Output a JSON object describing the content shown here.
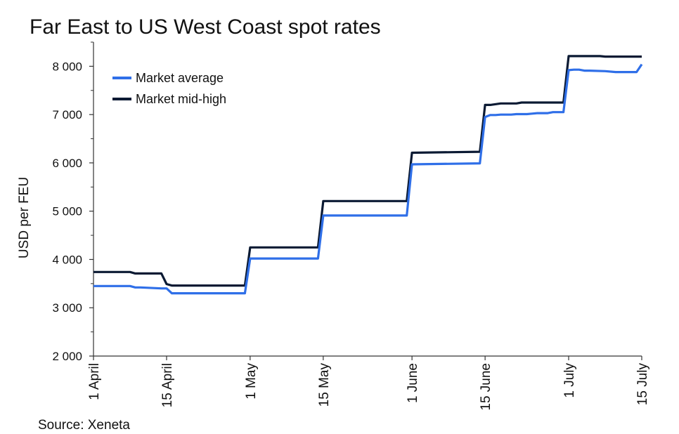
{
  "title": "Far East to US West Coast spot rates",
  "source": "Source: Xeneta",
  "colors": {
    "average": "#2f6fe8",
    "midhigh": "#0b1a33",
    "axis": "#333333"
  },
  "chart_data": {
    "type": "line",
    "title": "Far East to US West Coast spot rates",
    "xlabel": "",
    "ylabel": "USD per FEU",
    "ylim": [
      2000,
      8500
    ],
    "xlim": [
      "2024-04-01",
      "2024-07-15"
    ],
    "x_ticks": [
      {
        "date": "2024-04-01",
        "label": "1 April"
      },
      {
        "date": "2024-04-15",
        "label": "15 April"
      },
      {
        "date": "2024-05-01",
        "label": "1 May"
      },
      {
        "date": "2024-05-15",
        "label": "15 May"
      },
      {
        "date": "2024-06-01",
        "label": "1 June"
      },
      {
        "date": "2024-06-15",
        "label": "15 June"
      },
      {
        "date": "2024-07-01",
        "label": "1 July"
      },
      {
        "date": "2024-07-15",
        "label": "15 July"
      }
    ],
    "y_ticks": [
      {
        "value": 2000,
        "label": "2 000"
      },
      {
        "value": 3000,
        "label": "3 000"
      },
      {
        "value": 4000,
        "label": "4 000"
      },
      {
        "value": 5000,
        "label": "5 000"
      },
      {
        "value": 6000,
        "label": "6 000"
      },
      {
        "value": 7000,
        "label": "7 000"
      },
      {
        "value": 8000,
        "label": "8 000"
      }
    ],
    "legend_position": "top-left",
    "grid": false,
    "series": [
      {
        "name": "Market average",
        "color": "#2f6fe8",
        "x": [
          "2024-04-01",
          "2024-04-08",
          "2024-04-09",
          "2024-04-10",
          "2024-04-14",
          "2024-04-15",
          "2024-04-16",
          "2024-04-30",
          "2024-05-01",
          "2024-05-14",
          "2024-05-15",
          "2024-05-31",
          "2024-06-01",
          "2024-06-14",
          "2024-06-15",
          "2024-06-16",
          "2024-06-17",
          "2024-06-18",
          "2024-06-20",
          "2024-06-21",
          "2024-06-23",
          "2024-06-24",
          "2024-06-25",
          "2024-06-27",
          "2024-06-28",
          "2024-06-30",
          "2024-07-01",
          "2024-07-02",
          "2024-07-03",
          "2024-07-04",
          "2024-07-05",
          "2024-07-08",
          "2024-07-10",
          "2024-07-14",
          "2024-07-15"
        ],
        "y": [
          3450,
          3450,
          3420,
          3420,
          3400,
          3400,
          3300,
          3300,
          4020,
          4020,
          4910,
          4910,
          5970,
          5990,
          6950,
          6990,
          6990,
          7000,
          7000,
          7010,
          7010,
          7020,
          7030,
          7030,
          7050,
          7050,
          7920,
          7930,
          7930,
          7910,
          7910,
          7900,
          7880,
          7880,
          8040
        ]
      },
      {
        "name": "Market mid-high",
        "color": "#0b1a33",
        "x": [
          "2024-04-01",
          "2024-04-08",
          "2024-04-09",
          "2024-04-14",
          "2024-04-15",
          "2024-04-16",
          "2024-04-30",
          "2024-05-01",
          "2024-05-14",
          "2024-05-15",
          "2024-05-31",
          "2024-06-01",
          "2024-06-14",
          "2024-06-15",
          "2024-06-16",
          "2024-06-18",
          "2024-06-21",
          "2024-06-22",
          "2024-06-30",
          "2024-07-01",
          "2024-07-07",
          "2024-07-08",
          "2024-07-15"
        ],
        "y": [
          3740,
          3740,
          3710,
          3710,
          3490,
          3460,
          3460,
          4250,
          4250,
          5210,
          5210,
          6210,
          6230,
          7200,
          7200,
          7230,
          7230,
          7250,
          7250,
          8210,
          8210,
          8200,
          8200
        ]
      }
    ]
  }
}
